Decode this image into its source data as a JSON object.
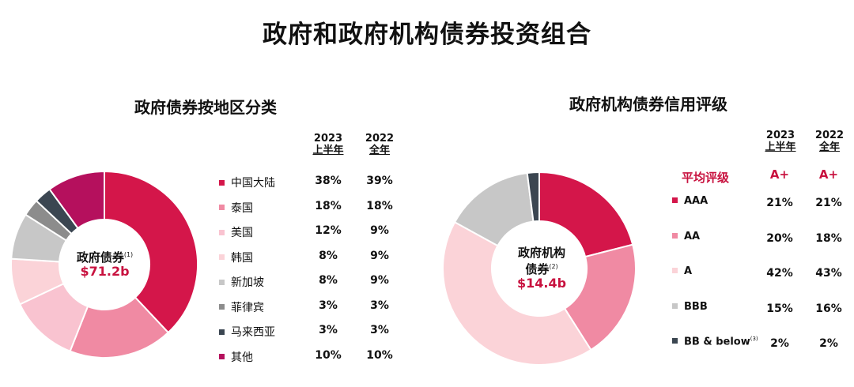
{
  "title": "政府和政府机构债券投资组合",
  "chart_data": [
    {
      "type": "pie",
      "title": "政府债券按地区分类",
      "center_label": "政府债券",
      "center_note": "(1)",
      "center_value": "$71.2b",
      "columns": [
        {
          "year": "2023",
          "period": "上半年"
        },
        {
          "year": "2022",
          "period": "全年"
        }
      ],
      "categories": [
        "中国大陆",
        "泰国",
        "美国",
        "韩国",
        "新加坡",
        "菲律宾",
        "马来西亚",
        "其他"
      ],
      "colors": [
        "#d4164a",
        "#f08aa3",
        "#f9c3d0",
        "#fbd3d8",
        "#c7c7c7",
        "#8c8c8c",
        "#3b4651",
        "#b5105d"
      ],
      "series": [
        {
          "name": "2023 上半年",
          "values": [
            38,
            18,
            12,
            8,
            8,
            3,
            3,
            10
          ],
          "labels": [
            "38%",
            "18%",
            "12%",
            "8%",
            "8%",
            "3%",
            "3%",
            "10%"
          ]
        },
        {
          "name": "2022 全年",
          "values": [
            39,
            18,
            9,
            9,
            9,
            3,
            3,
            10
          ],
          "labels": [
            "39%",
            "18%",
            "9%",
            "9%",
            "9%",
            "3%",
            "3%",
            "10%"
          ]
        }
      ]
    },
    {
      "type": "pie",
      "title": "政府机构债券信用评级",
      "center_label_line1": "政府机构",
      "center_label_line2": "债券",
      "center_note": "(2)",
      "center_value": "$14.4b",
      "columns": [
        {
          "year": "2023",
          "period": "上半年"
        },
        {
          "year": "2022",
          "period": "全年"
        }
      ],
      "average_label": "平均评级",
      "average_values": [
        "A+",
        "A+"
      ],
      "categories": [
        "AAA",
        "AA",
        "A",
        "BBB",
        "BB & below"
      ],
      "category_notes": [
        "",
        "",
        "",
        "",
        "(3)"
      ],
      "colors": [
        "#d4164a",
        "#f08aa3",
        "#fbd3d8",
        "#c7c7c7",
        "#3b4651"
      ],
      "series": [
        {
          "name": "2023 上半年",
          "values": [
            21,
            20,
            42,
            15,
            2
          ],
          "labels": [
            "21%",
            "20%",
            "42%",
            "15%",
            "2%"
          ]
        },
        {
          "name": "2022 全年",
          "values": [
            21,
            18,
            43,
            16,
            2
          ],
          "labels": [
            "21%",
            "18%",
            "43%",
            "16%",
            "2%"
          ]
        }
      ]
    }
  ]
}
